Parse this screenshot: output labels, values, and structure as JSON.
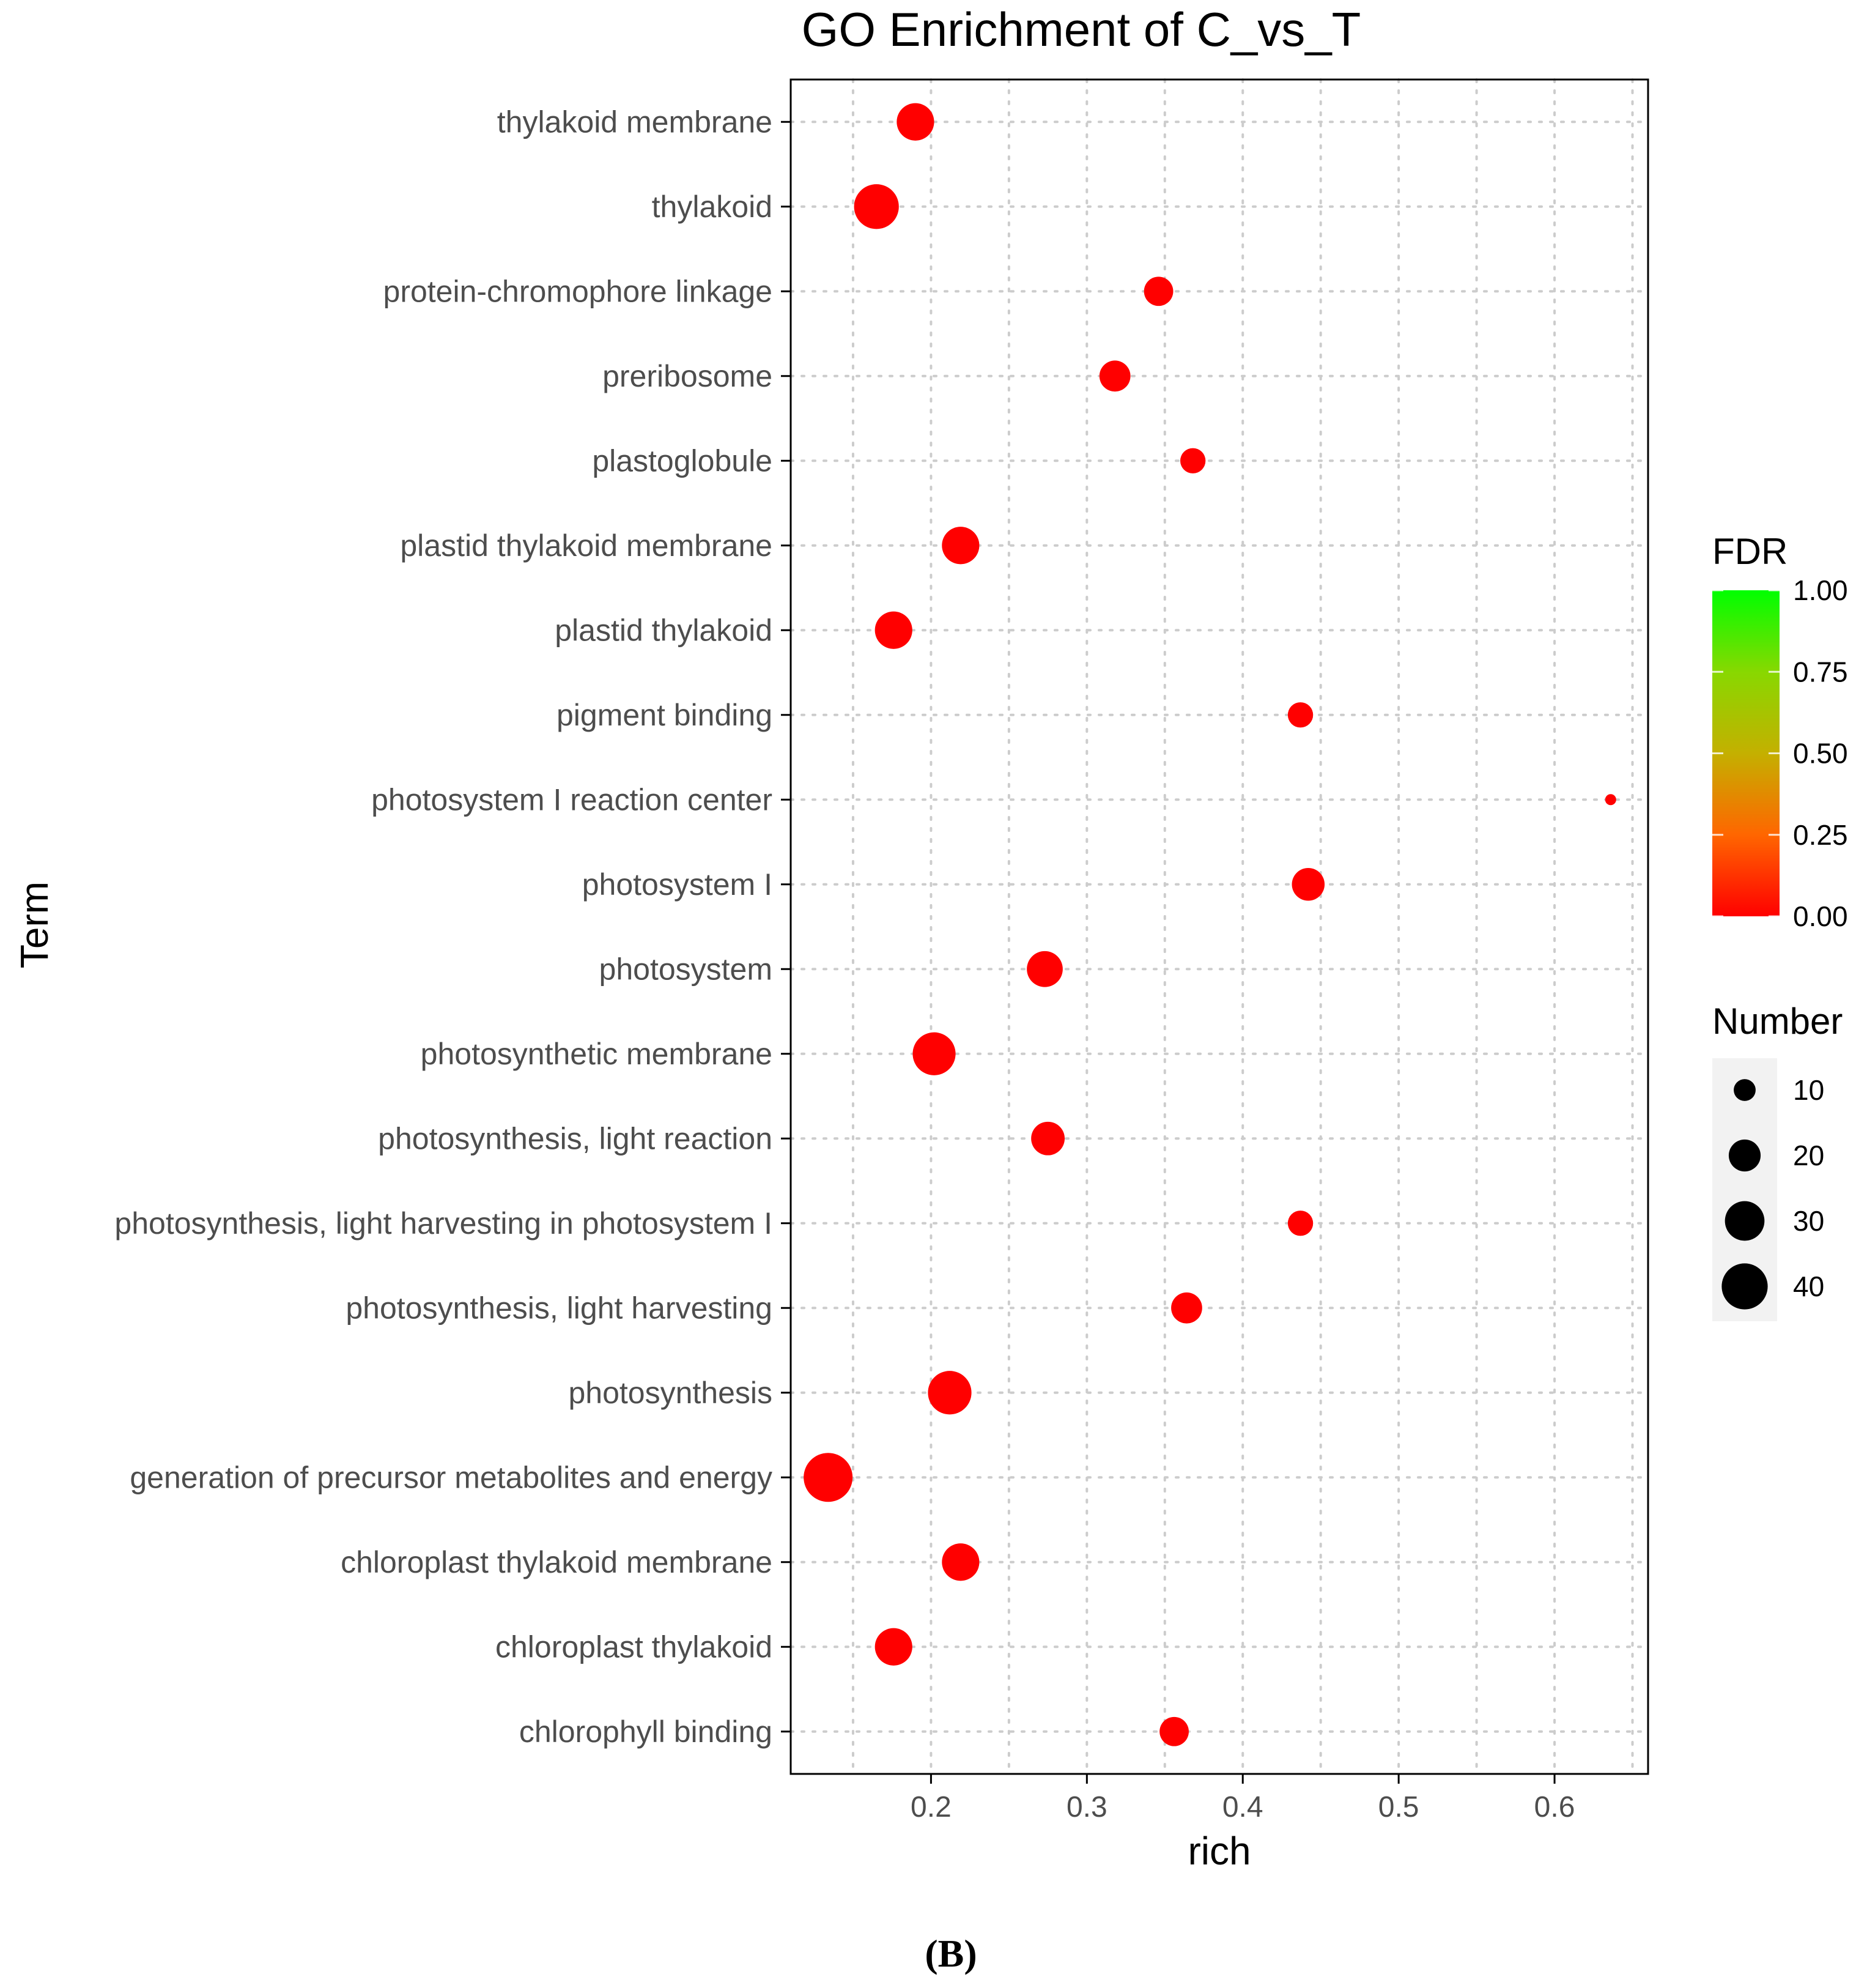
{
  "chart_data": {
    "type": "scatter",
    "title": "GO Enrichment of C_vs_T",
    "xlabel": "rich",
    "ylabel": "Term",
    "xlim": [
      0.11,
      0.66
    ],
    "xticks": [
      0.2,
      0.3,
      0.4,
      0.5,
      0.6
    ],
    "xtick_labels": [
      "0.2",
      "0.3",
      "0.4",
      "0.5",
      "0.6"
    ],
    "grid": true,
    "points": [
      {
        "term": "thylakoid membrane",
        "rich": 0.19,
        "number": 27,
        "fdr": 0.0
      },
      {
        "term": "thylakoid",
        "rich": 0.165,
        "number": 38,
        "fdr": 0.0
      },
      {
        "term": "protein-chromophore linkage",
        "rich": 0.346,
        "number": 17,
        "fdr": 0.0
      },
      {
        "term": "preribosome",
        "rich": 0.318,
        "number": 19,
        "fdr": 0.0
      },
      {
        "term": "plastoglobule",
        "rich": 0.368,
        "number": 13,
        "fdr": 0.0
      },
      {
        "term": "plastid thylakoid membrane",
        "rich": 0.219,
        "number": 27,
        "fdr": 0.0
      },
      {
        "term": "plastid thylakoid",
        "rich": 0.176,
        "number": 27,
        "fdr": 0.0
      },
      {
        "term": "pigment binding",
        "rich": 0.437,
        "number": 13,
        "fdr": 0.0
      },
      {
        "term": "photosystem I reaction center",
        "rich": 0.636,
        "number": 3,
        "fdr": 0.0
      },
      {
        "term": "photosystem I",
        "rich": 0.442,
        "number": 21,
        "fdr": 0.0
      },
      {
        "term": "photosystem",
        "rich": 0.273,
        "number": 25,
        "fdr": 0.0
      },
      {
        "term": "photosynthetic membrane",
        "rich": 0.202,
        "number": 35,
        "fdr": 0.0
      },
      {
        "term": "photosynthesis, light reaction",
        "rich": 0.275,
        "number": 22,
        "fdr": 0.0
      },
      {
        "term": "photosynthesis, light harvesting in photosystem I",
        "rich": 0.437,
        "number": 13,
        "fdr": 0.0
      },
      {
        "term": "photosynthesis, light harvesting",
        "rich": 0.364,
        "number": 19,
        "fdr": 0.0
      },
      {
        "term": "photosynthesis",
        "rich": 0.212,
        "number": 36,
        "fdr": 0.0
      },
      {
        "term": "generation of precursor metabolites and energy",
        "rich": 0.134,
        "number": 45,
        "fdr": 0.0
      },
      {
        "term": "chloroplast thylakoid membrane",
        "rich": 0.219,
        "number": 27,
        "fdr": 0.0
      },
      {
        "term": "chloroplast thylakoid",
        "rich": 0.176,
        "number": 27,
        "fdr": 0.0
      },
      {
        "term": "chlorophyll binding",
        "rich": 0.356,
        "number": 17,
        "fdr": 0.0
      }
    ],
    "legend_color": {
      "title": "FDR",
      "ticks": [
        1.0,
        0.75,
        0.5,
        0.25,
        0.0
      ],
      "tick_labels": [
        "1.00",
        "0.75",
        "0.50",
        "0.25",
        "0.00"
      ],
      "low_color": "#ff0000",
      "high_color": "#00ff00",
      "position": "right"
    },
    "legend_size": {
      "title": "Number",
      "values": [
        10,
        20,
        30,
        40
      ],
      "labels": [
        "10",
        "20",
        "30",
        "40"
      ],
      "position": "right"
    }
  },
  "panel_label": "(B)",
  "colors": {
    "point": "#ff0000",
    "grid": "#cccccc",
    "axis": "#000000",
    "legend_key_bg": "#f2f2f2"
  }
}
